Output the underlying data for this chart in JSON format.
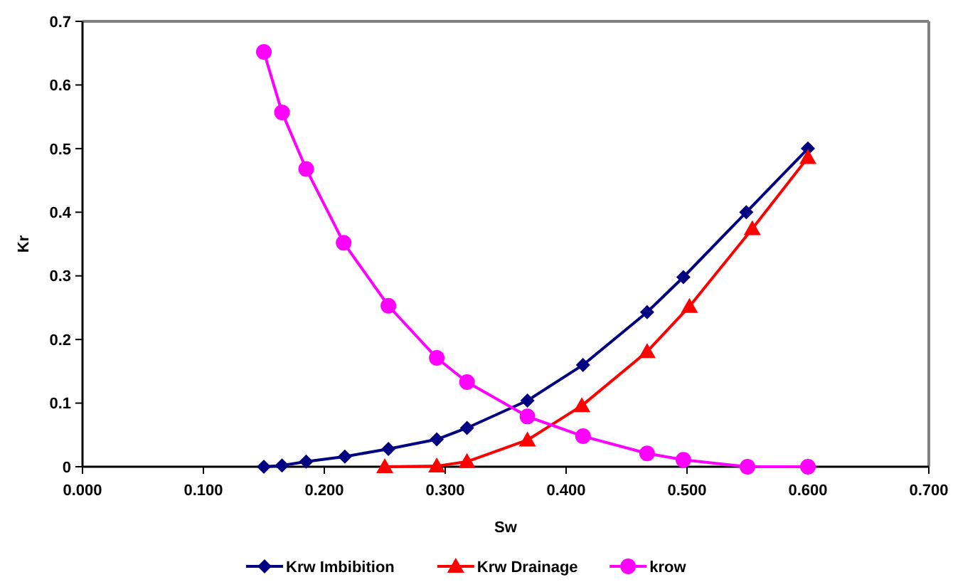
{
  "chart_data": {
    "type": "line",
    "xlabel": "Sw",
    "ylabel": "Kr",
    "xlim": [
      0,
      0.7
    ],
    "ylim": [
      0,
      0.7
    ],
    "xticks": [
      {
        "value": 0,
        "label": "0.000"
      },
      {
        "value": 0.1,
        "label": "0.100"
      },
      {
        "value": 0.2,
        "label": "0.200"
      },
      {
        "value": 0.3,
        "label": "0.300"
      },
      {
        "value": 0.4,
        "label": "0.400"
      },
      {
        "value": 0.5,
        "label": "0.500"
      },
      {
        "value": 0.6,
        "label": "0.600"
      },
      {
        "value": 0.7,
        "label": "0.700"
      }
    ],
    "yticks": [
      0,
      0.1,
      0.2,
      0.3,
      0.4,
      0.5,
      0.6,
      0.7
    ],
    "grid": false,
    "legend": "bottom",
    "series": [
      {
        "name": "Krw Imbibition",
        "color": "#000080",
        "marker": "diamond",
        "x": [
          0.15,
          0.165,
          0.185,
          0.217,
          0.253,
          0.293,
          0.318,
          0.368,
          0.414,
          0.467,
          0.497,
          0.549,
          0.6
        ],
        "values": [
          0,
          0.002,
          0.008,
          0.016,
          0.028,
          0.043,
          0.061,
          0.104,
          0.16,
          0.243,
          0.298,
          0.4,
          0.5
        ]
      },
      {
        "name": "Krw Drainage",
        "color": "#ff0000",
        "marker": "triangle",
        "x": [
          0.25,
          0.293,
          0.318,
          0.368,
          0.413,
          0.467,
          0.502,
          0.554,
          0.6
        ],
        "values": [
          0,
          0.001,
          0.008,
          0.042,
          0.096,
          0.181,
          0.252,
          0.374,
          0.486
        ]
      },
      {
        "name": "krow",
        "color": "#ff00ff",
        "marker": "circle",
        "x": [
          0.15,
          0.165,
          0.185,
          0.216,
          0.253,
          0.293,
          0.318,
          0.368,
          0.414,
          0.467,
          0.497,
          0.55,
          0.6
        ],
        "values": [
          0.652,
          0.557,
          0.468,
          0.352,
          0.253,
          0.171,
          0.133,
          0.079,
          0.048,
          0.021,
          0.011,
          0,
          0
        ]
      }
    ]
  }
}
